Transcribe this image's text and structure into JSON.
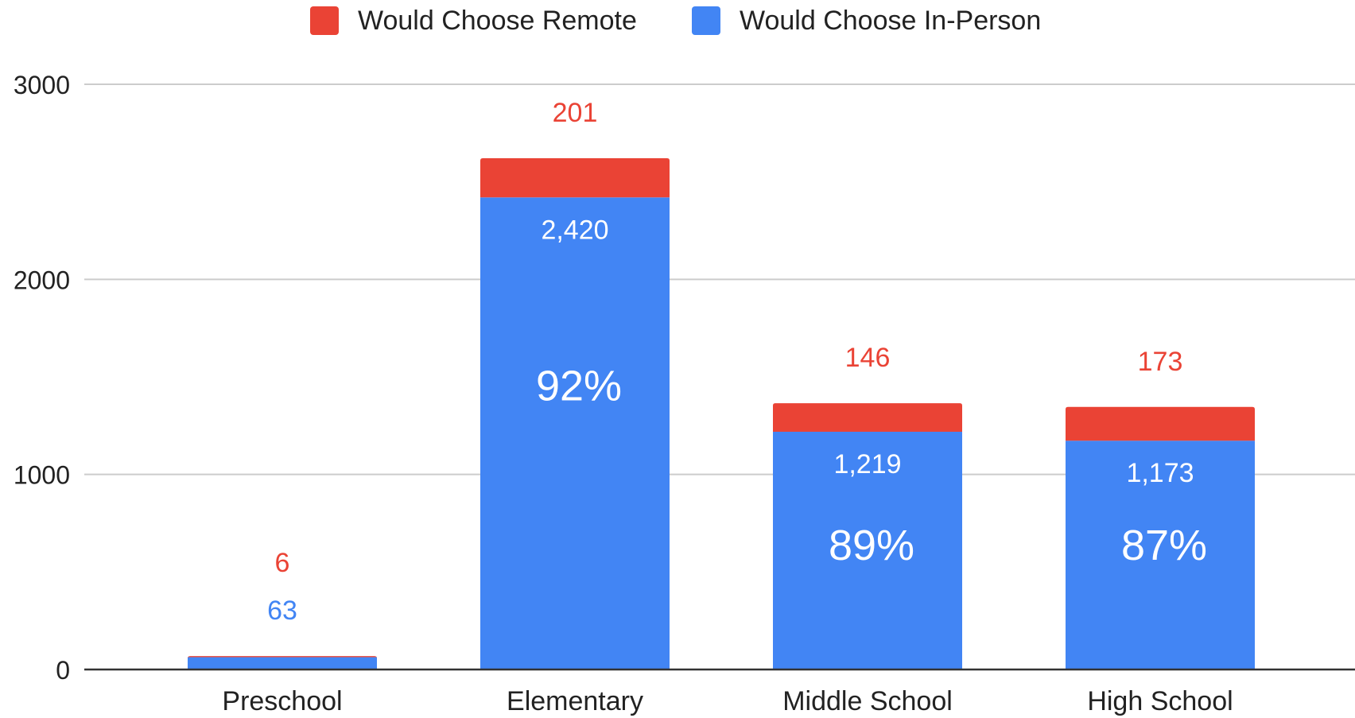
{
  "chart_data": {
    "type": "bar",
    "stacked": true,
    "title": "",
    "xlabel": "",
    "ylabel": "",
    "ylim": [
      0,
      3000
    ],
    "yticks": [
      0,
      1000,
      2000,
      3000
    ],
    "grid": true,
    "legend_position": "top-center",
    "categories": [
      "Preschool",
      "Elementary",
      "Middle School",
      "High School"
    ],
    "series": [
      {
        "name": "Would Choose In-Person",
        "color": "#4285f4",
        "values": [
          63,
          2420,
          1219,
          1173
        ],
        "labels": [
          "63",
          "2,420",
          "1,219",
          "1,173"
        ]
      },
      {
        "name": "Would Choose Remote",
        "color": "#ea4335",
        "values": [
          6,
          201,
          146,
          173
        ],
        "labels": [
          "6",
          "201",
          "146",
          "173"
        ]
      }
    ],
    "legend_order": [
      "Would Choose Remote",
      "Would Choose In-Person"
    ],
    "annotations": [
      "",
      "92%",
      "89%",
      "87%"
    ]
  }
}
